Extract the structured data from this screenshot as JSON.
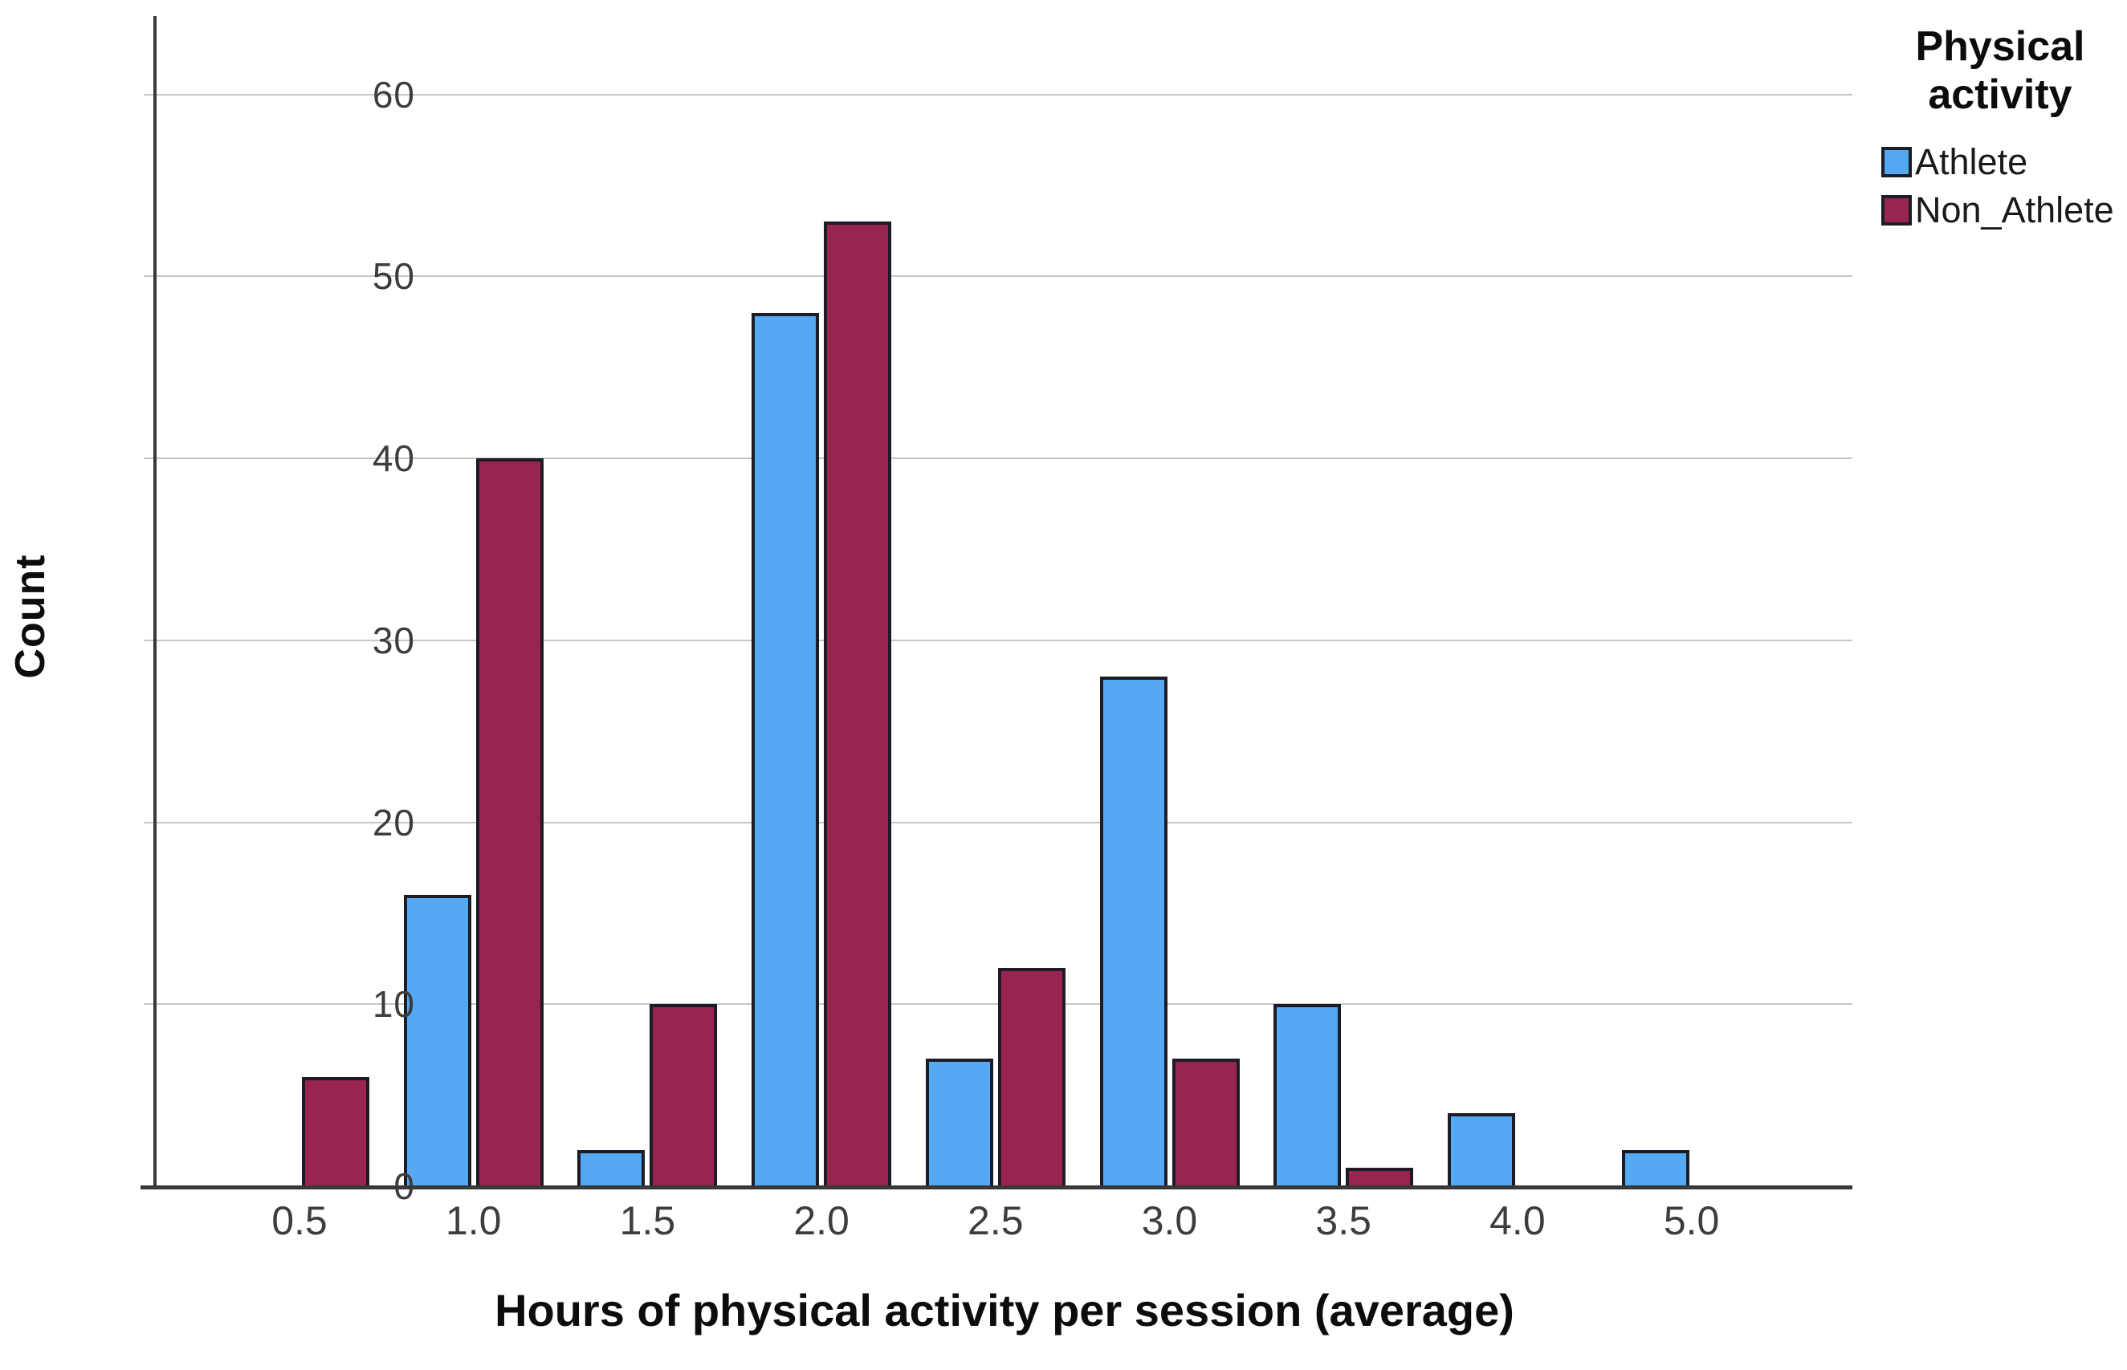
{
  "chart_data": {
    "type": "bar",
    "title": "",
    "xlabel": "Hours of physical activity per session (average)",
    "ylabel": "Count",
    "categories": [
      "0.5",
      "1.0",
      "1.5",
      "2.0",
      "2.5",
      "3.0",
      "3.5",
      "4.0",
      "5.0"
    ],
    "series": [
      {
        "name": "Athlete",
        "color": "#55a9f2",
        "values": [
          0,
          16,
          2,
          48,
          7,
          28,
          10,
          4,
          2
        ]
      },
      {
        "name": "Non_Athlete",
        "color": "#9a2450",
        "values": [
          6,
          40,
          10,
          53,
          12,
          7,
          1,
          0,
          0
        ]
      }
    ],
    "y_ticks": [
      0,
      10,
      20,
      30,
      40,
      50,
      60
    ],
    "ylim": [
      0,
      64.3
    ],
    "grid": true,
    "legend": {
      "title": "Physical\nactivity",
      "position": "top-right",
      "entries": [
        "Athlete",
        "Non_Athlete"
      ]
    },
    "colors": {
      "gridline": "#c6c6c6",
      "axis": "#383838",
      "tick_label": "#3d3d3d",
      "bar_border": "#1c1c26"
    }
  }
}
